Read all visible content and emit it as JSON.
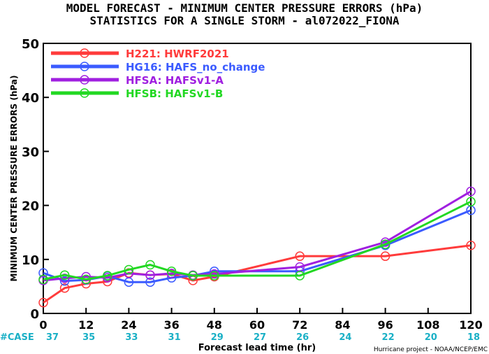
{
  "title_line1": "MODEL FORECAST - MINIMUM CENTER PRESSURE ERRORS (hPa)",
  "title_line2": "STATISTICS FOR A SINGLE STORM - al072022_FIONA",
  "case_label": "#CASE",
  "case_counts": [
    "37",
    "35",
    "33",
    "31",
    "29",
    "27",
    "26",
    "24",
    "22",
    "20",
    "18"
  ],
  "credit": "Hurricane project - NOAA/NCEP/EMC",
  "chart_data": {
    "type": "line",
    "title": "MODEL FORECAST - MINIMUM CENTER PRESSURE ERRORS (hPa)",
    "subtitle": "STATISTICS FOR A SINGLE STORM - al072022_FIONA",
    "xlabel": "Forecast lead time (hr)",
    "ylabel": "MINIMUM CENTER PRESSURE ERRORS (hPa)",
    "xlim": [
      0,
      120
    ],
    "ylim": [
      0,
      50
    ],
    "xticks": [
      0,
      12,
      24,
      36,
      48,
      60,
      72,
      84,
      96,
      108,
      120
    ],
    "yticks": [
      0,
      10,
      20,
      30,
      40,
      50
    ],
    "grid": false,
    "legend_position": "top-left",
    "series": [
      {
        "name": "H221: HWRF2021",
        "color": "#ff3b3b",
        "x": [
          0,
          6,
          12,
          18,
          24,
          30,
          36,
          42,
          48,
          72,
          96,
          120
        ],
        "values": [
          2.0,
          4.7,
          5.5,
          5.9,
          7.5,
          7.1,
          7.3,
          6.1,
          6.8,
          10.6,
          10.6,
          12.6
        ]
      },
      {
        "name": "HG16: HAFS_no_change",
        "color": "#3b5bff",
        "x": [
          0,
          6,
          12,
          18,
          24,
          30,
          36,
          42,
          48,
          72,
          96,
          120
        ],
        "values": [
          7.5,
          6.0,
          6.2,
          6.9,
          5.8,
          5.8,
          6.6,
          7.0,
          7.8,
          7.8,
          12.6,
          19.1
        ]
      },
      {
        "name": "HFSA: HAFSv1-A",
        "color": "#a020e0",
        "x": [
          0,
          6,
          12,
          18,
          24,
          30,
          36,
          42,
          48,
          72,
          96,
          120
        ],
        "values": [
          6.1,
          6.5,
          6.8,
          6.6,
          7.4,
          7.1,
          7.4,
          7.1,
          7.3,
          8.6,
          13.2,
          22.6
        ]
      },
      {
        "name": "HFSB: HAFSv1-B",
        "color": "#22d822",
        "x": [
          0,
          6,
          12,
          18,
          24,
          30,
          36,
          42,
          48,
          72,
          96,
          120
        ],
        "values": [
          6.3,
          7.1,
          6.3,
          7.0,
          8.1,
          9.0,
          7.8,
          7.0,
          7.0,
          7.0,
          12.8,
          20.7
        ]
      }
    ]
  }
}
